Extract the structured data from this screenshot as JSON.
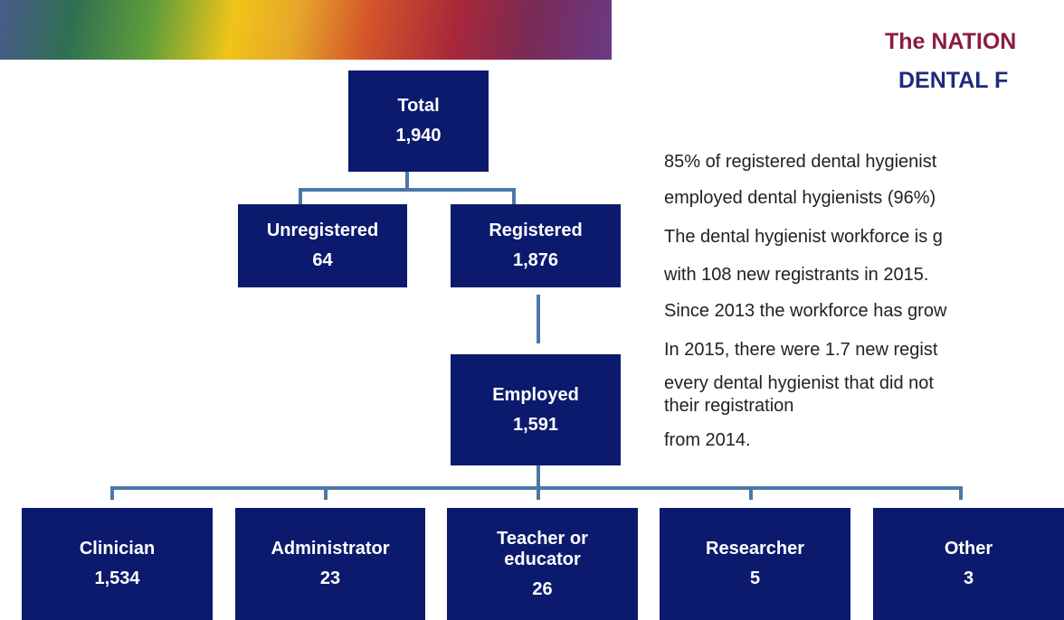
{
  "header": {
    "title_lines": [
      "The NATION",
      "DENTAL F"
    ]
  },
  "nodes": [
    {
      "label": [
        "Total"
      ],
      "value": "1,940"
    },
    {
      "label": [
        "Unregistered"
      ],
      "value": "64"
    },
    {
      "label": [
        "Registered"
      ],
      "value": "1,876"
    },
    {
      "label": [
        "Employed"
      ],
      "value": "1,591"
    },
    {
      "label": [
        "Clinician"
      ],
      "value": "1,534"
    },
    {
      "label": [
        "Administrator"
      ],
      "value": "23"
    },
    {
      "label": [
        "Teacher or",
        "educator"
      ],
      "value": "26"
    },
    {
      "label": [
        "Researcher"
      ],
      "value": "5"
    },
    {
      "label": [
        "Other"
      ],
      "value": "3"
    }
  ],
  "text_lines": [
    "85% of registered dental hygienist",
    "employed dental hygienists (96%)",
    "The dental hygienist workforce is g",
    "with 108 new registrants in 2015.",
    "Since 2013 the workforce has grow",
    "In 2015, there were 1.7 new regist",
    "every dental hygienist that did not",
    "their registration",
    "from 2014."
  ]
}
